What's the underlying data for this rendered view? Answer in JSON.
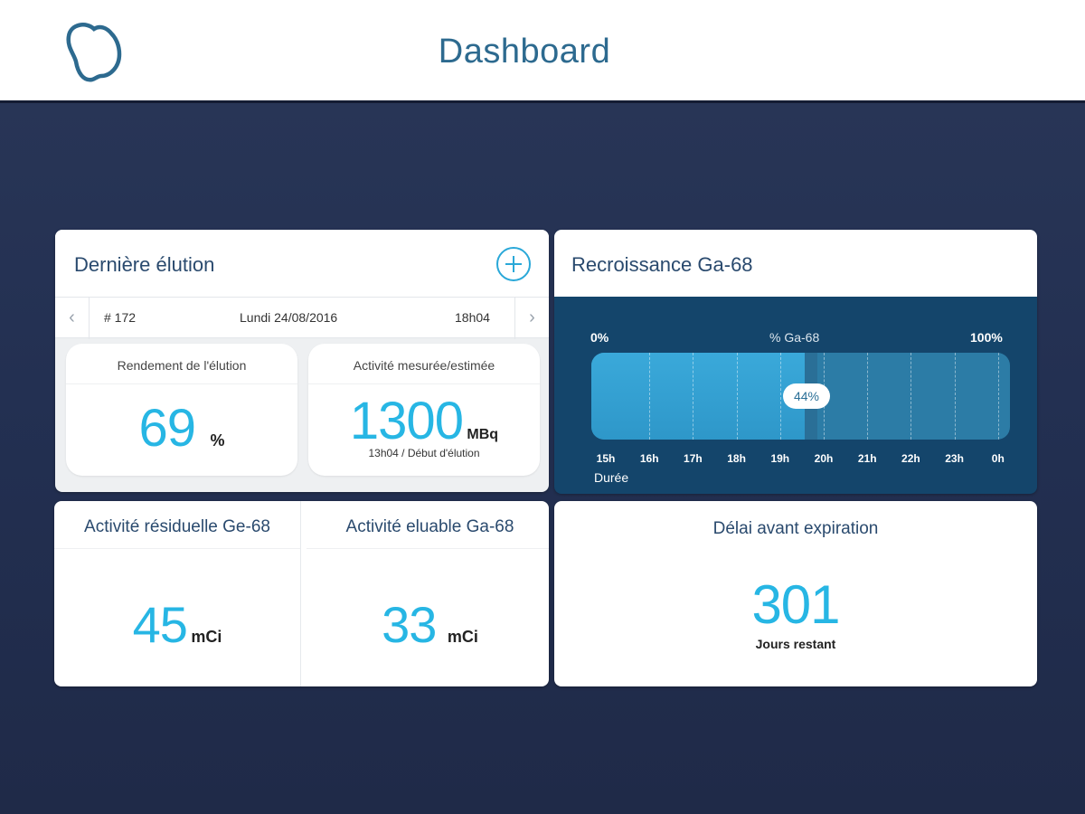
{
  "header": {
    "title": "Dashboard",
    "logo_icon": "clover-logo-icon"
  },
  "colors": {
    "accent": "#27b6e4",
    "navy": "#1f2a49",
    "gauge_bg": "#14456b"
  },
  "last_elution": {
    "title": "Dernière élution",
    "add_icon": "plus-circle-icon",
    "number": "# 172",
    "date": "Lundi 24/08/2016",
    "time": "18h04",
    "yield": {
      "label": "Rendement de l'élution",
      "value": "69",
      "unit": "%"
    },
    "activity": {
      "label": "Activité mesurée/estimée",
      "value": "1300",
      "unit": "MBq",
      "note": "13h04 / Début d'élution"
    }
  },
  "regrowth": {
    "title": "Recroissance Ga-68",
    "min_label": "0%",
    "mid_label": "% Ga-68",
    "max_label": "100%",
    "percent": 44,
    "percent_label": "44%",
    "hours": [
      "15h",
      "16h",
      "17h",
      "18h",
      "19h",
      "20h",
      "21h",
      "22h",
      "23h",
      "0h"
    ],
    "duration_label": "Durée"
  },
  "residual": {
    "ge68": {
      "title": "Activité résiduelle Ge-68",
      "value": "45",
      "unit": "mCi"
    },
    "ga68": {
      "title": "Activité eluable Ga-68",
      "value": "33",
      "unit": "mCi"
    }
  },
  "expiration": {
    "title": "Délai avant expiration",
    "value": "301",
    "subtitle": "Jours restant"
  }
}
